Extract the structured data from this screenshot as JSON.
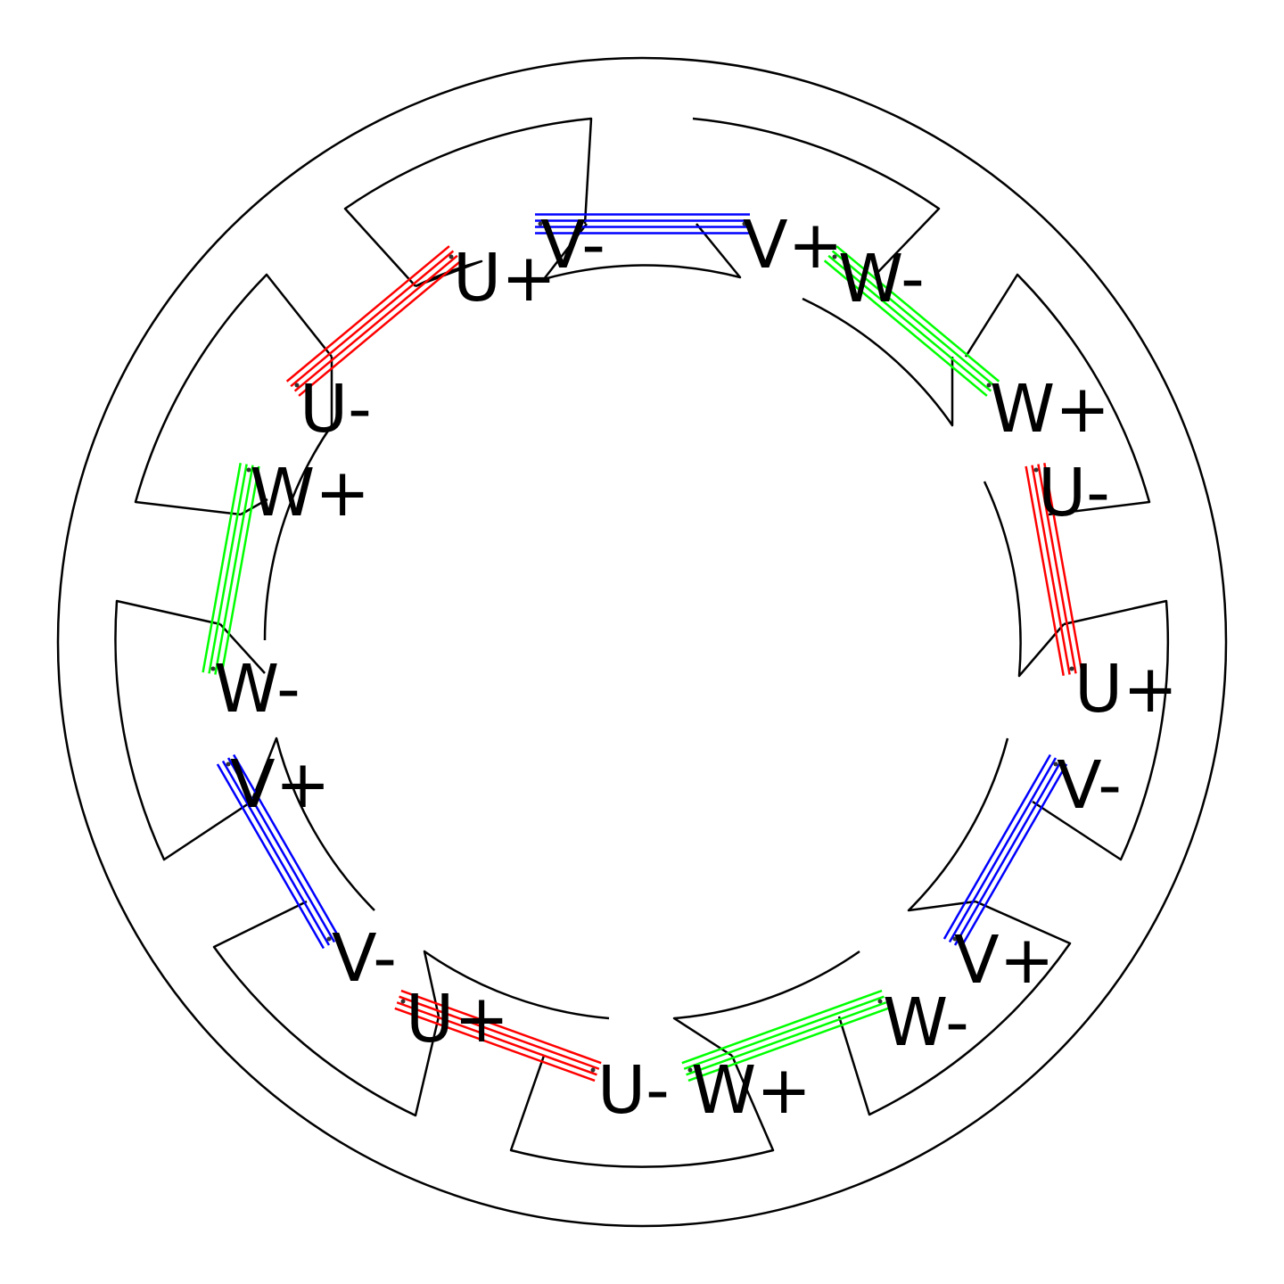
{
  "diagram": {
    "title": "",
    "phase_colors": {
      "U": "#ff0000",
      "V": "#0000ff",
      "W": "#00ff00"
    },
    "outline_color": "#000000",
    "coils": [
      {
        "id": "coil-1",
        "phase": "U",
        "from": "U+",
        "to": "U-"
      },
      {
        "id": "coil-2",
        "phase": "V",
        "from": "V-",
        "to": "V+"
      },
      {
        "id": "coil-3",
        "phase": "W",
        "from": "W-",
        "to": "W+"
      },
      {
        "id": "coil-4",
        "phase": "U",
        "from": "U-",
        "to": "U+"
      },
      {
        "id": "coil-5",
        "phase": "V",
        "from": "V-",
        "to": "V+"
      },
      {
        "id": "coil-6",
        "phase": "W",
        "from": "W-",
        "to": "W+"
      },
      {
        "id": "coil-7",
        "phase": "U",
        "from": "U-",
        "to": "U+"
      },
      {
        "id": "coil-8",
        "phase": "V",
        "from": "V-",
        "to": "V+"
      },
      {
        "id": "coil-9",
        "phase": "W",
        "from": "W-",
        "to": "W+"
      }
    ],
    "terminal_labels": [
      "U+",
      "U-",
      "V-",
      "V+",
      "W-",
      "W+",
      "U-",
      "U+",
      "V-",
      "V+",
      "W-",
      "W+",
      "U-",
      "U+",
      "V-",
      "V+",
      "W-",
      "W+"
    ]
  }
}
